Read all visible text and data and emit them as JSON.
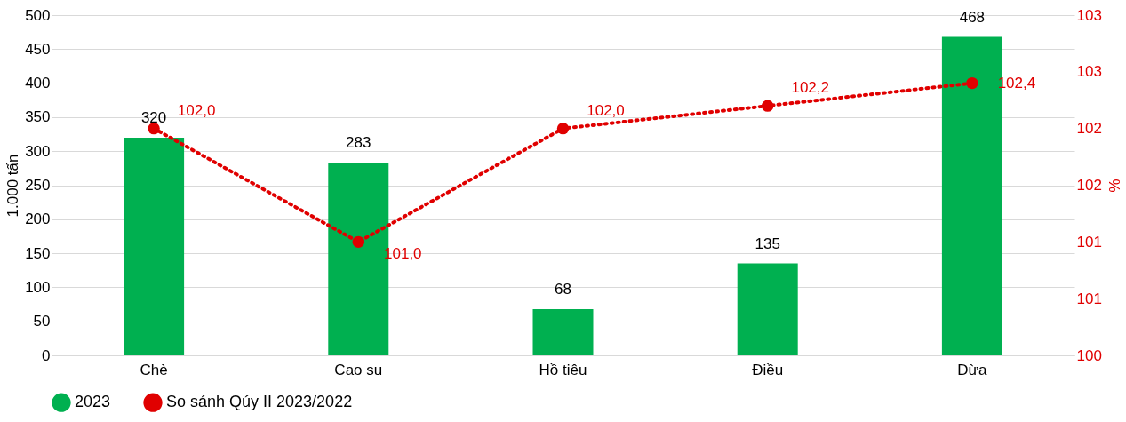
{
  "chart_data": {
    "type": "bar",
    "categories": [
      "Chè",
      "Cao su",
      "Hồ tiêu",
      "Điều",
      "Dừa"
    ],
    "ylabel": "1.000 tấn",
    "y2label": "%",
    "series": [
      {
        "name": "2023",
        "color": "#00b050",
        "values": [
          320,
          283,
          68,
          135,
          468
        ]
      },
      {
        "name": "So sánh Qúy II 2023/2022",
        "type": "line",
        "axis": "y2",
        "color": "#e00000",
        "marker": "circle",
        "line_style": "dotted",
        "values": [
          102.0,
          101.0,
          102.0,
          102.2,
          102.4
        ],
        "value_labels": [
          "102,0",
          "101,0",
          "102,0",
          "102,2",
          "102,4"
        ]
      }
    ],
    "ylim": [
      0,
      500
    ],
    "yticks": [
      0,
      50,
      100,
      150,
      200,
      250,
      300,
      350,
      400,
      450,
      500
    ],
    "y2lim": [
      100,
      103
    ],
    "y2ticks": [
      100,
      {
        "value": 100.5,
        "label": "101"
      },
      101,
      {
        "value": 101.5,
        "label": "102"
      },
      102,
      {
        "value": 102.5,
        "label": "103"
      },
      103
    ],
    "data_labels": true,
    "grid": "y",
    "legend": "bottom"
  }
}
